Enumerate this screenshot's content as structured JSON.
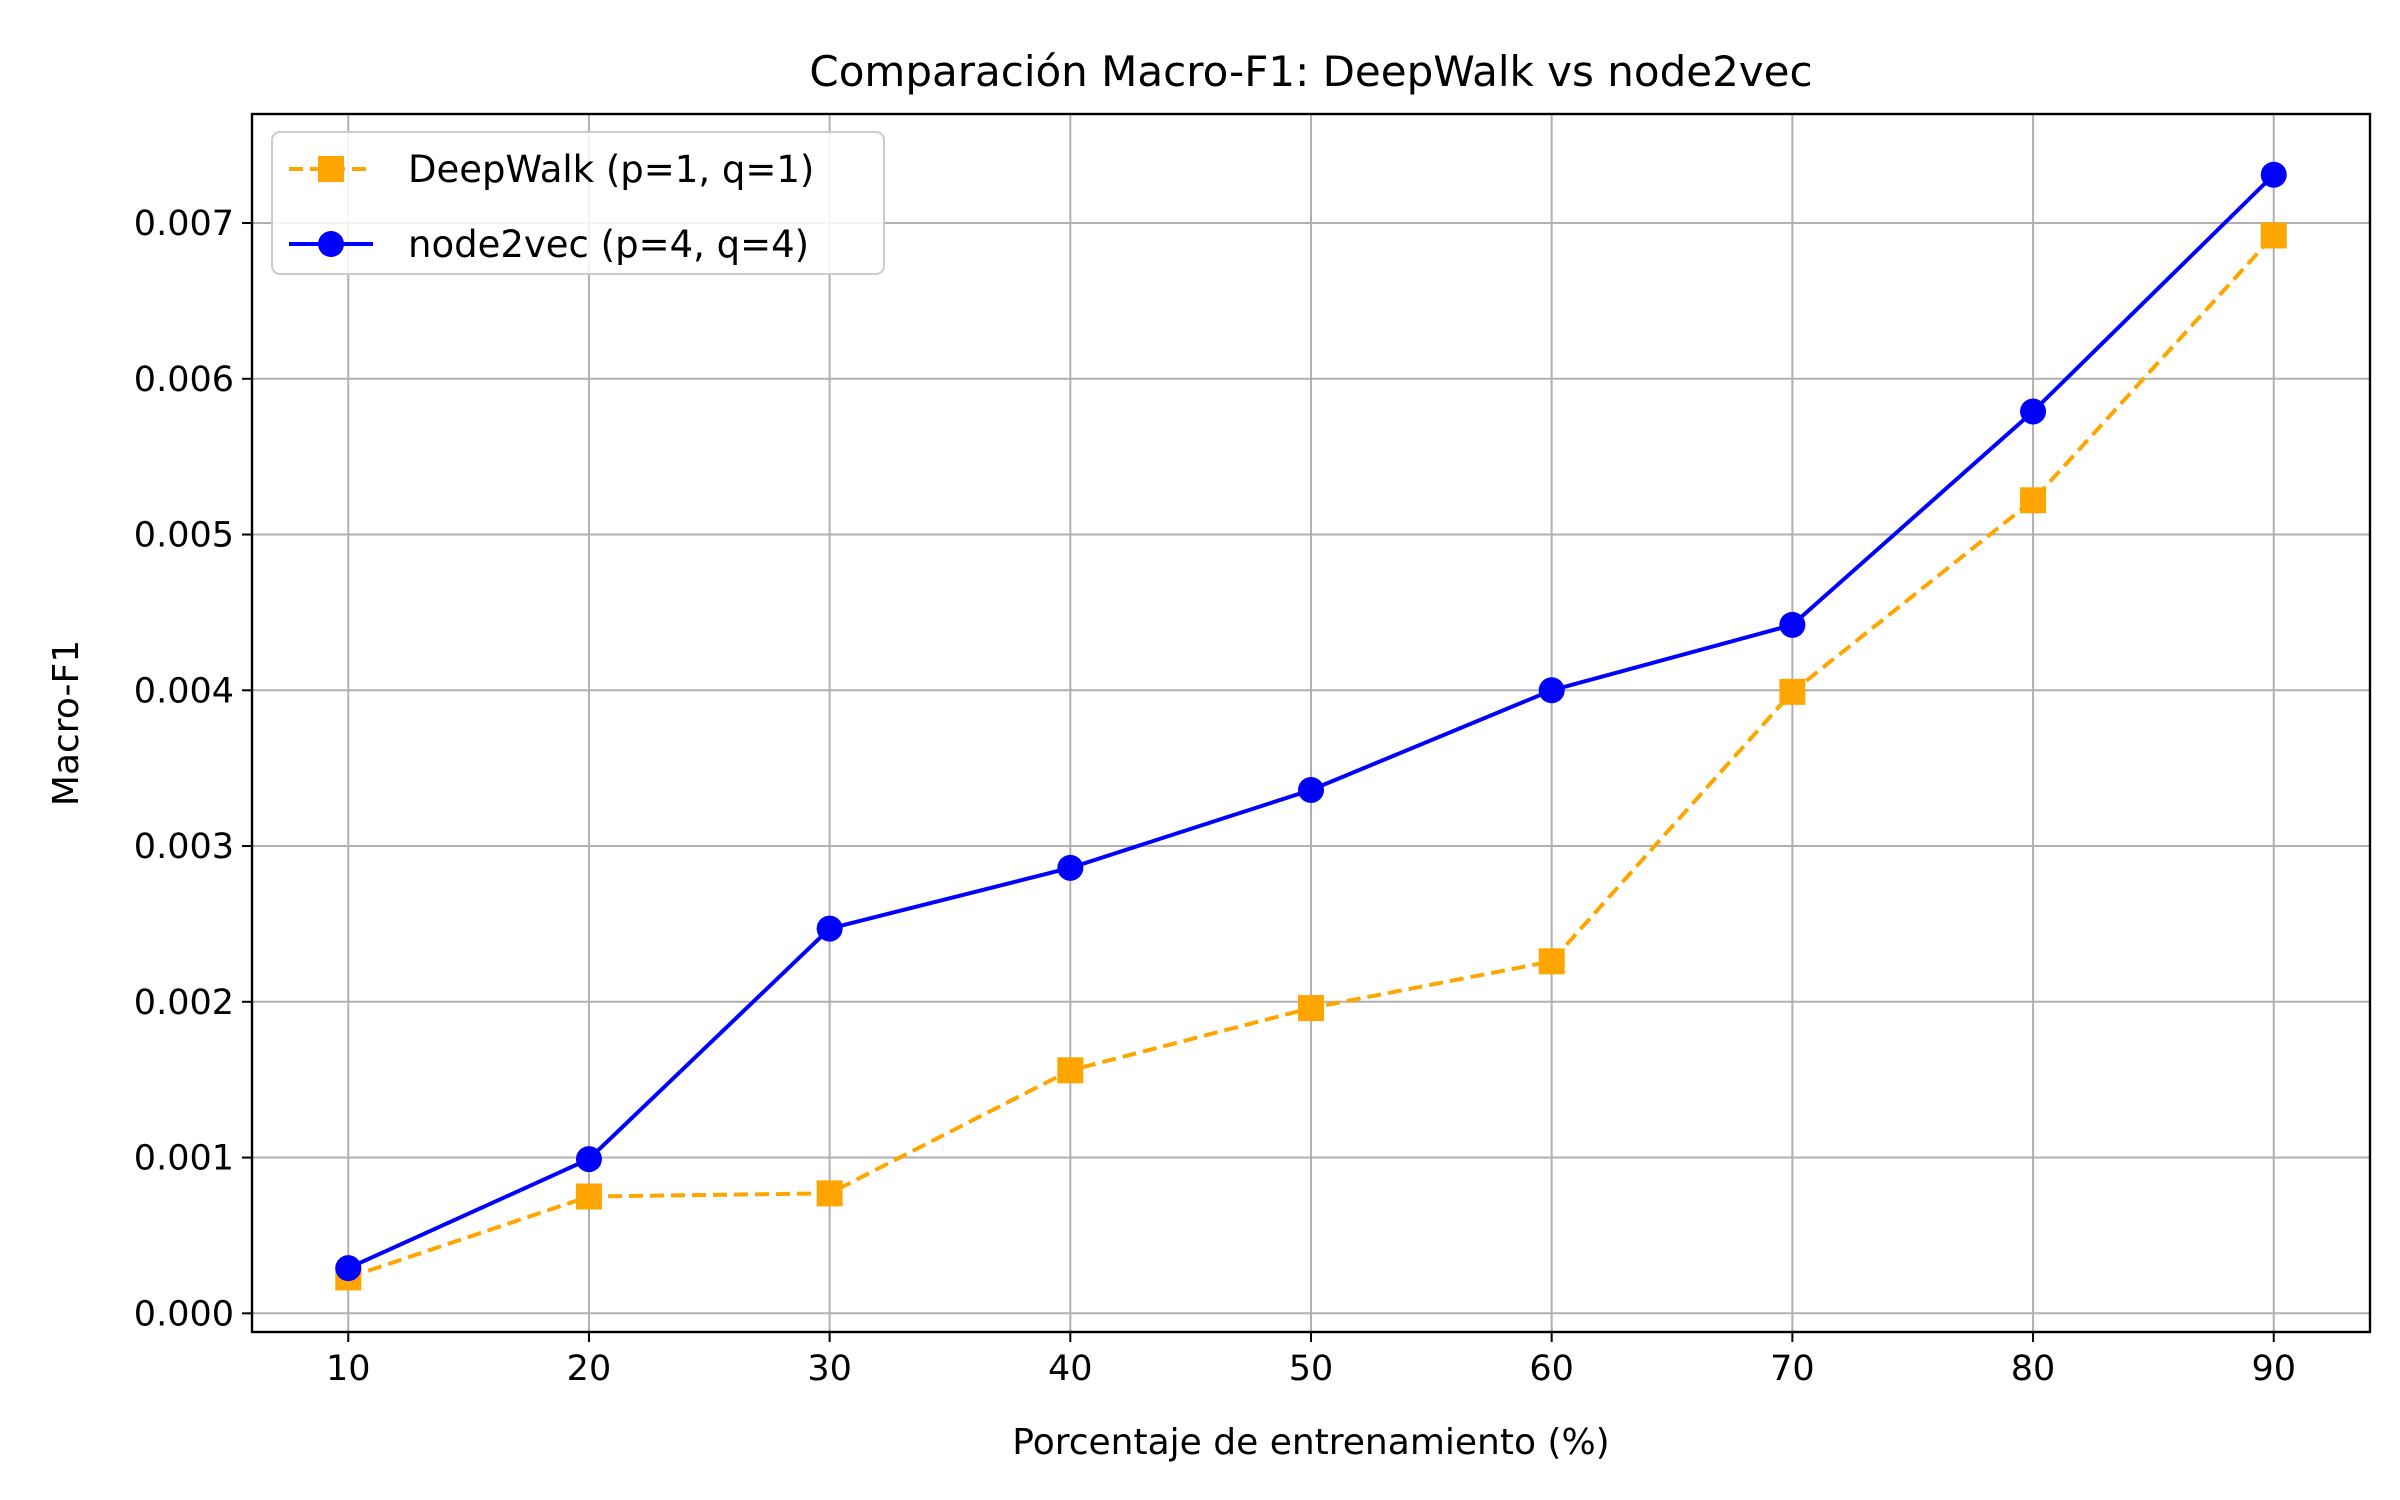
{
  "chart_data": {
    "type": "line",
    "title": "Comparación Macro-F1: DeepWalk vs node2vec",
    "xlabel": "Porcentaje de entrenamiento (%)",
    "ylabel": "Macro-F1",
    "x": [
      10,
      20,
      30,
      40,
      50,
      60,
      70,
      80,
      90
    ],
    "xlim": [
      6,
      94
    ],
    "ylim": [
      -0.00012,
      0.0077
    ],
    "xticks": [
      "10",
      "20",
      "30",
      "40",
      "50",
      "60",
      "70",
      "80",
      "90"
    ],
    "yticks": [
      "0.000",
      "0.001",
      "0.002",
      "0.003",
      "0.004",
      "0.005",
      "0.006",
      "0.007"
    ],
    "grid": true,
    "legend_position": "top-left",
    "series": [
      {
        "name": "DeepWalk (p=1, q=1)",
        "values": [
          0.00023,
          0.00075,
          0.00077,
          0.00156,
          0.00196,
          0.00226,
          0.00399,
          0.00522,
          0.00692
        ],
        "color": "#FFA500",
        "style": "dashed",
        "marker": "square"
      },
      {
        "name": "node2vec (p=4, q=4)",
        "values": [
          0.00029,
          0.00099,
          0.00247,
          0.00286,
          0.00336,
          0.004,
          0.00442,
          0.00579,
          0.00731
        ],
        "color": "#0000FF",
        "style": "solid",
        "marker": "circle"
      }
    ]
  }
}
